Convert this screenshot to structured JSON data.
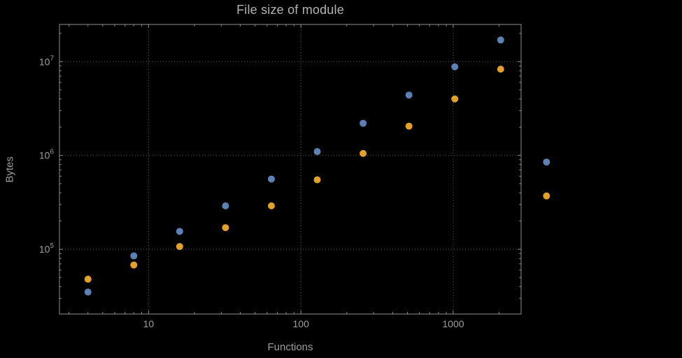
{
  "chart_data": {
    "type": "scatter",
    "title": "File size of module",
    "xlabel": "Functions",
    "ylabel": "Bytes",
    "x_scale": "log",
    "y_scale": "log",
    "xlim": [
      2.6,
      2790
    ],
    "ylim": [
      20400,
      24900000
    ],
    "grid": "dotted-major",
    "legend": "none",
    "x_ticks": [
      10,
      100,
      1000
    ],
    "x_tick_labels": [
      "10",
      "100",
      "1000"
    ],
    "y_ticks": [
      100000,
      1000000,
      10000000
    ],
    "y_tick_labels": [
      {
        "base": "10",
        "exp": "5"
      },
      {
        "base": "10",
        "exp": "6"
      },
      {
        "base": "10",
        "exp": "7"
      }
    ],
    "colors": {
      "background": "#000000",
      "frame": "#8f8f8f",
      "grid": "#5c5c5c",
      "text": "#9e9e9e",
      "title_text": "#b3b3b3"
    },
    "marker_radius_px": 5,
    "series": [
      {
        "name": "blue",
        "color": "#5e81b5",
        "points": [
          [
            4,
            35000
          ],
          [
            8,
            85000
          ],
          [
            16,
            155000
          ],
          [
            32,
            290000
          ],
          [
            64,
            560000
          ],
          [
            128,
            1100000
          ],
          [
            256,
            2200000
          ],
          [
            512,
            4400000
          ],
          [
            1024,
            8800000
          ],
          [
            2048,
            17000000
          ],
          [
            4096,
            850000
          ]
        ]
      },
      {
        "name": "orange",
        "color": "#e3a02a",
        "points": [
          [
            4,
            48000
          ],
          [
            8,
            68000
          ],
          [
            16,
            107000
          ],
          [
            32,
            170000
          ],
          [
            64,
            290000
          ],
          [
            128,
            550000
          ],
          [
            256,
            1050000
          ],
          [
            512,
            2050000
          ],
          [
            1024,
            4000000
          ],
          [
            2048,
            8300000
          ],
          [
            4096,
            370000
          ]
        ]
      }
    ]
  }
}
